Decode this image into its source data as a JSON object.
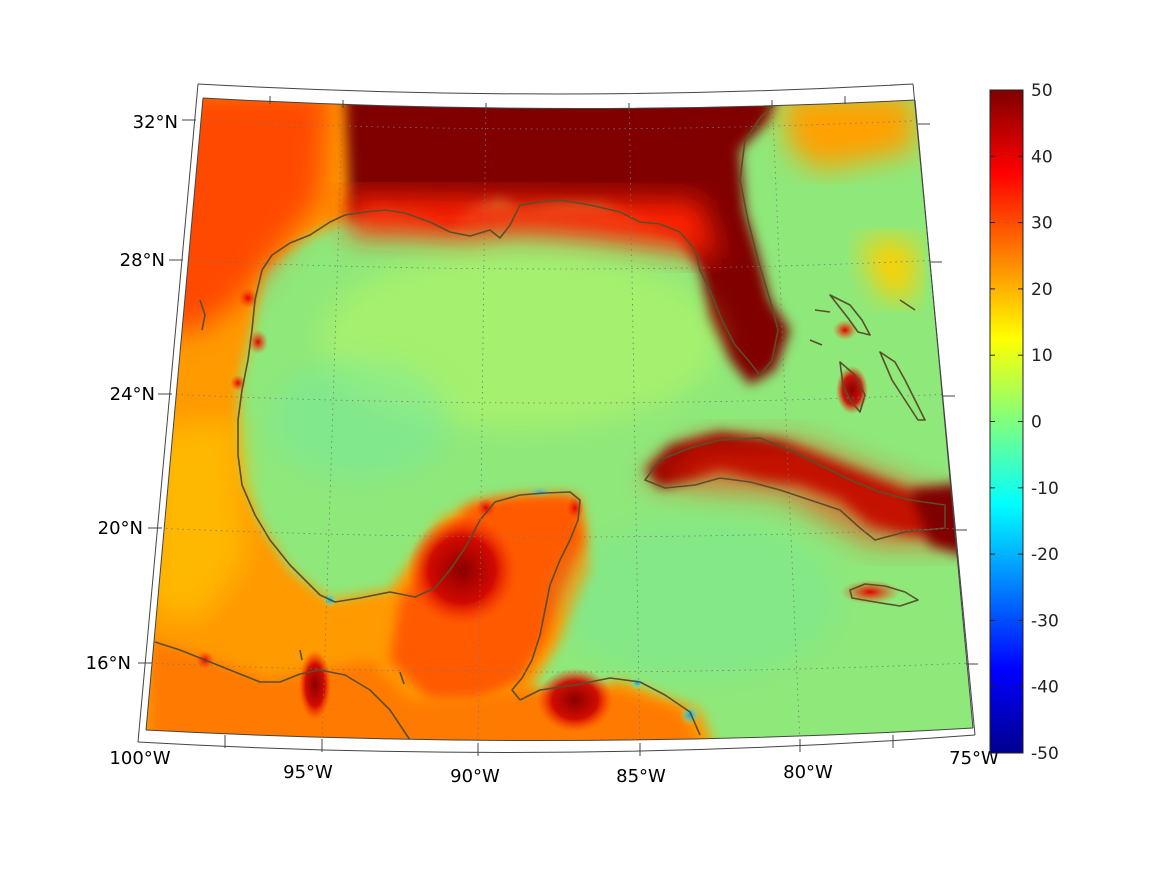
{
  "map": {
    "projection": "conic",
    "region": "Gulf of Mexico and Caribbean",
    "lon_range": [
      -100,
      -75
    ],
    "lat_range": [
      14,
      33
    ],
    "grid": "dotted",
    "colormap": "jet",
    "coastline_color": "#5a4f2a"
  },
  "axes": {
    "lat_ticks": [
      {
        "value": 32,
        "label": "32°N"
      },
      {
        "value": 28,
        "label": "28°N"
      },
      {
        "value": 24,
        "label": "24°N"
      },
      {
        "value": 20,
        "label": "20°N"
      },
      {
        "value": 16,
        "label": "16°N"
      }
    ],
    "lon_ticks": [
      {
        "value": -100,
        "label": "100°W"
      },
      {
        "value": -95,
        "label": "95°W"
      },
      {
        "value": -90,
        "label": "90°W"
      },
      {
        "value": -85,
        "label": "85°W"
      },
      {
        "value": -80,
        "label": "80°W"
      },
      {
        "value": -75,
        "label": "75°W"
      }
    ]
  },
  "colorbar": {
    "min": -50,
    "max": 50,
    "ticks": [
      50,
      40,
      30,
      20,
      10,
      0,
      -10,
      -20,
      -30,
      -40,
      -50
    ],
    "tick_labels": [
      "50",
      "40",
      "30",
      "20",
      "10",
      "0",
      "-10",
      "-20",
      "-30",
      "-40",
      "-50"
    ]
  },
  "field_regions": [
    {
      "name": "gulf-ocean",
      "value": 2
    },
    {
      "name": "caribbean-ocean",
      "value": 3
    },
    {
      "name": "southeast-us-land",
      "value": 48
    },
    {
      "name": "mexico-land",
      "value": 27
    },
    {
      "name": "cuba-land",
      "value": 48
    },
    {
      "name": "yucatan-land",
      "value": 30
    },
    {
      "name": "central-america-land",
      "value": 22
    },
    {
      "name": "jamaica-land",
      "value": 35
    }
  ]
}
